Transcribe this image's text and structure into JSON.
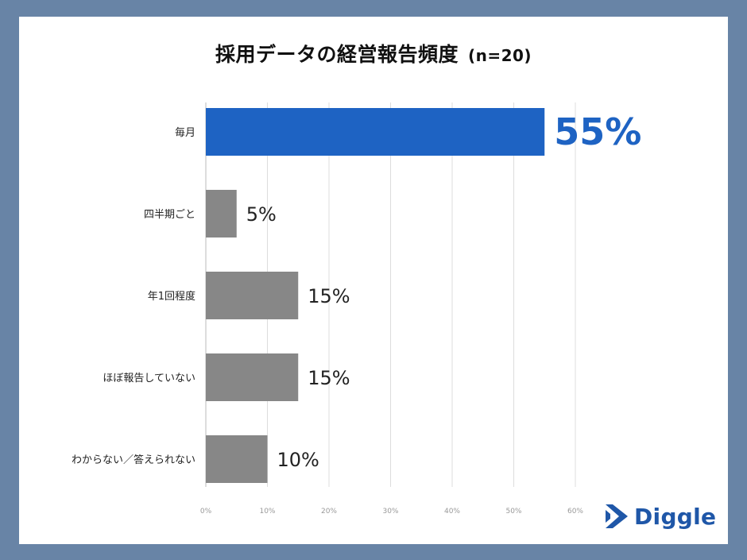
{
  "title": "採用データの経営報告頻度",
  "subtitle": "(n=20)",
  "brand": "Diggle",
  "colors": {
    "highlight": "#1e63c3",
    "bar": "#878787",
    "highlight_label": "#1e63c3",
    "label": "#222222",
    "grid": "#dddddd",
    "brand": "#1f57a8"
  },
  "chart_data": {
    "type": "bar",
    "orientation": "horizontal",
    "title": "採用データの経営報告頻度",
    "categories": [
      "毎月",
      "四半期ごと",
      "年1回程度",
      "ほぼ報告していない",
      "わからない／答えられない"
    ],
    "values": [
      55,
      5,
      15,
      15,
      10
    ],
    "value_labels": [
      "55%",
      "5%",
      "15%",
      "15%",
      "10%"
    ],
    "highlight_index": 0,
    "xlim": [
      0,
      60
    ],
    "xticks": [
      "0%",
      "10%",
      "20%",
      "30%",
      "40%",
      "50%",
      "60%"
    ],
    "grid": true
  }
}
